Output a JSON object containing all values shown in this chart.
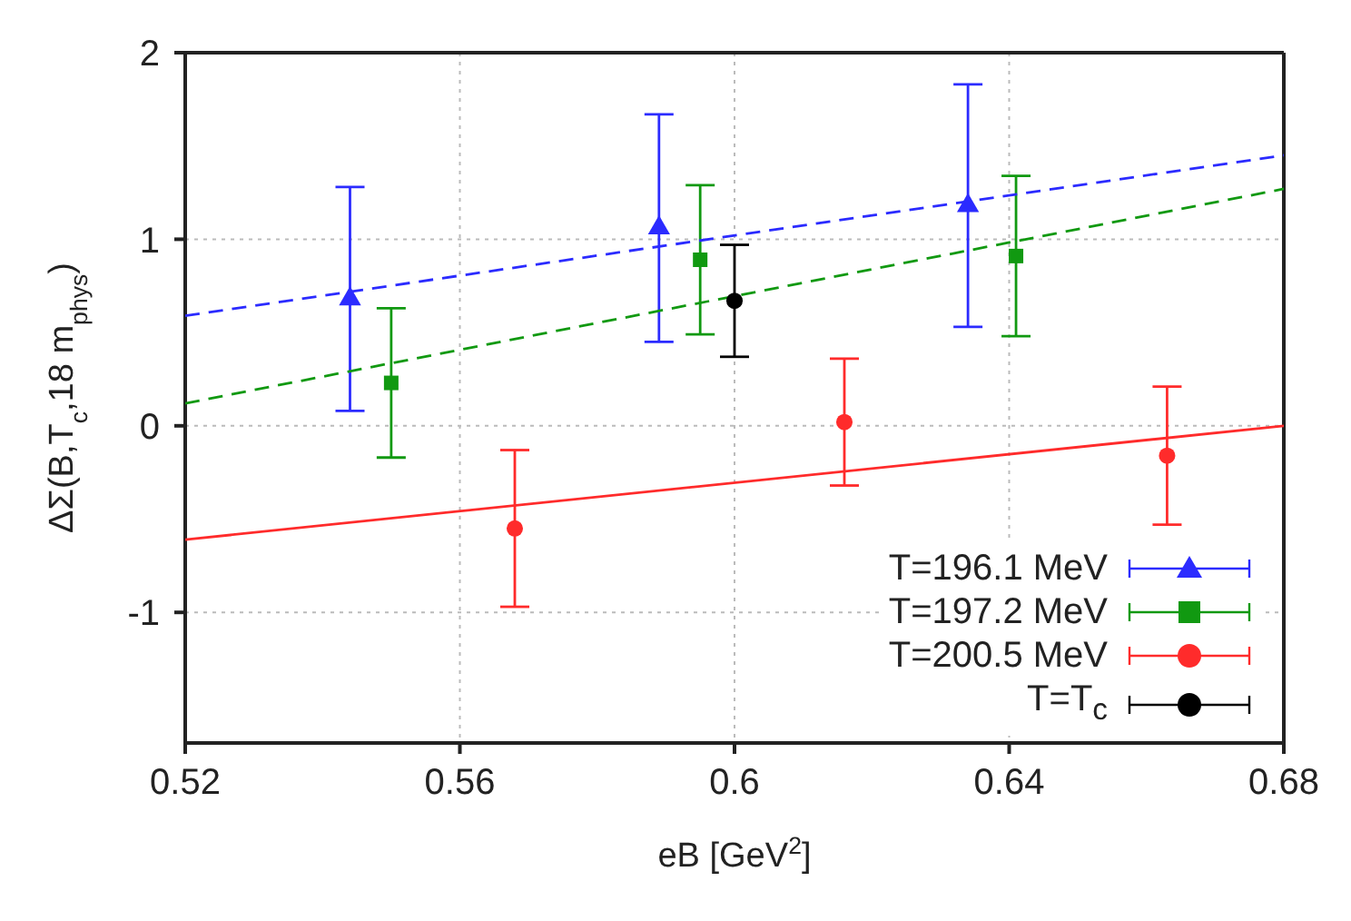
{
  "chart_data": {
    "type": "scatter",
    "xlabel": "eB [GeV$^{2}$]",
    "ylabel": "ΔΣ(B,T$_{c}$,18 m$_{phys}$)",
    "xlim": [
      0.52,
      0.68
    ],
    "xticks": [
      0.52,
      0.56,
      0.6,
      0.64,
      0.68
    ],
    "ylim": [
      -1.7,
      2
    ],
    "yticks": [
      -1,
      0,
      1,
      2
    ],
    "grid": true,
    "legend": "bottom right",
    "series": [
      {
        "type": "line",
        "color": "#2b2bff",
        "line_style": "dashed",
        "marker": "none",
        "x": [
          0.52,
          0.68
        ],
        "values": [
          0.59,
          1.45
        ]
      },
      {
        "type": "line",
        "color": "#119911",
        "line_style": "dashed",
        "marker": "none",
        "x": [
          0.52,
          0.68
        ],
        "values": [
          0.12,
          1.27
        ]
      },
      {
        "type": "line",
        "color": "#ff2b2b",
        "line_style": "solid",
        "marker": "none",
        "x": [
          0.52,
          0.68
        ],
        "values": [
          -0.61,
          0.0
        ]
      },
      {
        "name": "T=196.1 MeV",
        "color": "#2b2bff",
        "marker": "triangle",
        "x": [
          0.544,
          0.589,
          0.634
        ],
        "values": [
          0.68,
          1.06,
          1.18
        ],
        "errors": [
          0.6,
          0.61,
          0.65
        ]
      },
      {
        "name": "T=197.2 MeV",
        "color": "#119911",
        "marker": "square",
        "x": [
          0.55,
          0.595,
          0.641
        ],
        "values": [
          0.23,
          0.89,
          0.91
        ],
        "errors": [
          0.4,
          0.4,
          0.43
        ]
      },
      {
        "name": "T=200.5 MeV",
        "color": "#ff2b2b",
        "marker": "circle",
        "x": [
          0.568,
          0.616,
          0.663
        ],
        "values": [
          -0.55,
          0.02,
          -0.16
        ],
        "errors": [
          0.42,
          0.34,
          0.37
        ]
      },
      {
        "name": "T=T$_{c}$",
        "color": "#000000",
        "marker": "circle",
        "x": [
          0.6
        ],
        "values": [
          0.67
        ],
        "errors": [
          0.3
        ]
      }
    ]
  }
}
